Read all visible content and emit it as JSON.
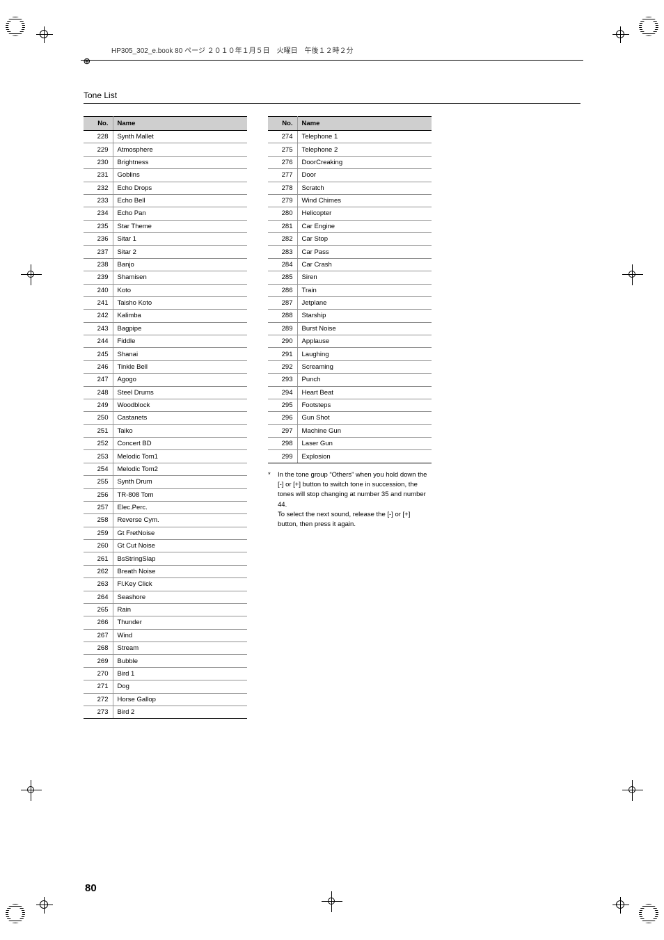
{
  "header": {
    "doc_line": "HP305_302_e.book  80 ページ  ２０１０年１月５日　火曜日　午後１２時２分",
    "arrow": "⊕"
  },
  "title": "Tone List",
  "table_headers": {
    "no": "No.",
    "name": "Name"
  },
  "left_rows": [
    {
      "no": "228",
      "name": "Synth Mallet"
    },
    {
      "no": "229",
      "name": "Atmosphere"
    },
    {
      "no": "230",
      "name": "Brightness"
    },
    {
      "no": "231",
      "name": "Goblins"
    },
    {
      "no": "232",
      "name": "Echo Drops"
    },
    {
      "no": "233",
      "name": "Echo Bell"
    },
    {
      "no": "234",
      "name": "Echo Pan"
    },
    {
      "no": "235",
      "name": "Star Theme"
    },
    {
      "no": "236",
      "name": "Sitar 1"
    },
    {
      "no": "237",
      "name": "Sitar 2"
    },
    {
      "no": "238",
      "name": "Banjo"
    },
    {
      "no": "239",
      "name": "Shamisen"
    },
    {
      "no": "240",
      "name": "Koto"
    },
    {
      "no": "241",
      "name": "Taisho Koto"
    },
    {
      "no": "242",
      "name": "Kalimba"
    },
    {
      "no": "243",
      "name": "Bagpipe"
    },
    {
      "no": "244",
      "name": "Fiddle"
    },
    {
      "no": "245",
      "name": "Shanai"
    },
    {
      "no": "246",
      "name": "Tinkle Bell"
    },
    {
      "no": "247",
      "name": "Agogo"
    },
    {
      "no": "248",
      "name": "Steel Drums"
    },
    {
      "no": "249",
      "name": "Woodblock"
    },
    {
      "no": "250",
      "name": "Castanets"
    },
    {
      "no": "251",
      "name": "Taiko"
    },
    {
      "no": "252",
      "name": "Concert BD"
    },
    {
      "no": "253",
      "name": "Melodic Tom1"
    },
    {
      "no": "254",
      "name": "Melodic Tom2"
    },
    {
      "no": "255",
      "name": "Synth Drum"
    },
    {
      "no": "256",
      "name": "TR-808 Tom"
    },
    {
      "no": "257",
      "name": "Elec.Perc."
    },
    {
      "no": "258",
      "name": "Reverse Cym."
    },
    {
      "no": "259",
      "name": "Gt FretNoise"
    },
    {
      "no": "260",
      "name": "Gt Cut Noise"
    },
    {
      "no": "261",
      "name": "BsStringSlap"
    },
    {
      "no": "262",
      "name": "Breath Noise"
    },
    {
      "no": "263",
      "name": "Fl.Key Click"
    },
    {
      "no": "264",
      "name": "Seashore"
    },
    {
      "no": "265",
      "name": "Rain"
    },
    {
      "no": "266",
      "name": "Thunder"
    },
    {
      "no": "267",
      "name": "Wind"
    },
    {
      "no": "268",
      "name": "Stream"
    },
    {
      "no": "269",
      "name": "Bubble"
    },
    {
      "no": "270",
      "name": "Bird 1"
    },
    {
      "no": "271",
      "name": "Dog"
    },
    {
      "no": "272",
      "name": "Horse Gallop"
    },
    {
      "no": "273",
      "name": "Bird 2"
    }
  ],
  "right_rows": [
    {
      "no": "274",
      "name": "Telephone 1"
    },
    {
      "no": "275",
      "name": "Telephone 2"
    },
    {
      "no": "276",
      "name": "DoorCreaking"
    },
    {
      "no": "277",
      "name": "Door"
    },
    {
      "no": "278",
      "name": "Scratch"
    },
    {
      "no": "279",
      "name": "Wind Chimes"
    },
    {
      "no": "280",
      "name": "Helicopter"
    },
    {
      "no": "281",
      "name": "Car Engine"
    },
    {
      "no": "282",
      "name": "Car Stop"
    },
    {
      "no": "283",
      "name": "Car Pass"
    },
    {
      "no": "284",
      "name": "Car Crash"
    },
    {
      "no": "285",
      "name": "Siren"
    },
    {
      "no": "286",
      "name": "Train"
    },
    {
      "no": "287",
      "name": "Jetplane"
    },
    {
      "no": "288",
      "name": "Starship"
    },
    {
      "no": "289",
      "name": "Burst Noise"
    },
    {
      "no": "290",
      "name": "Applause"
    },
    {
      "no": "291",
      "name": "Laughing"
    },
    {
      "no": "292",
      "name": "Screaming"
    },
    {
      "no": "293",
      "name": "Punch"
    },
    {
      "no": "294",
      "name": "Heart Beat"
    },
    {
      "no": "295",
      "name": "Footsteps"
    },
    {
      "no": "296",
      "name": "Gun Shot"
    },
    {
      "no": "297",
      "name": "Machine Gun"
    },
    {
      "no": "298",
      "name": "Laser Gun"
    },
    {
      "no": "299",
      "name": "Explosion"
    }
  ],
  "footnote": {
    "star": "*",
    "text": "In the tone group “Others” when you hold down the [-] or [+] button to switch tone in succession, the tones will stop changing at number 35 and number 44.\nTo select the next sound, release the [-] or [+] button, then press it again."
  },
  "page_number": "80"
}
